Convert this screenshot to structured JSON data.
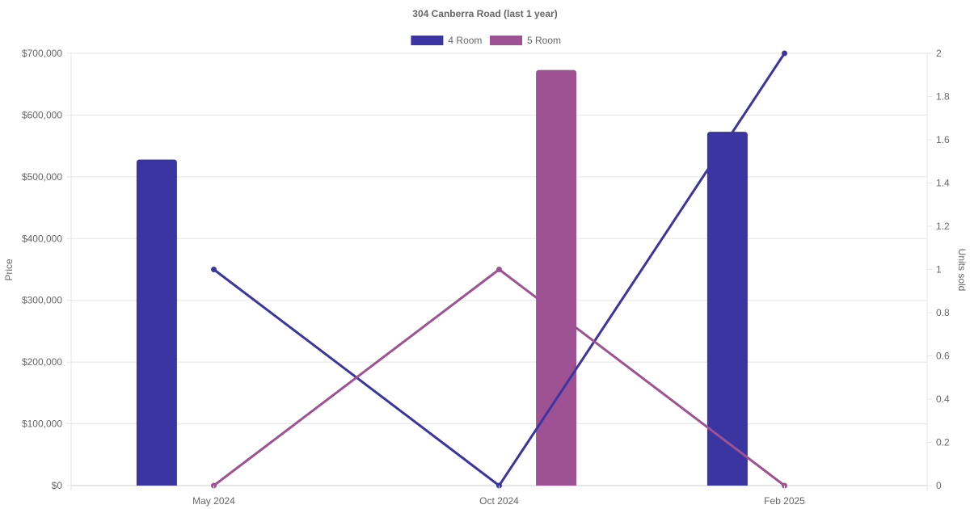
{
  "chart_data": {
    "type": "bar",
    "title": "304 Canberra Road (last 1 year)",
    "categories": [
      "May 2024",
      "Oct 2024",
      "Feb 2025"
    ],
    "y_left": {
      "label": "Price",
      "range": [
        0,
        700000
      ],
      "ticks": [
        0,
        100000,
        200000,
        300000,
        400000,
        500000,
        600000,
        700000
      ],
      "tick_labels": [
        "$0",
        "$100,000",
        "$200,000",
        "$300,000",
        "$400,000",
        "$500,000",
        "$600,000",
        "$700,000"
      ]
    },
    "y_right": {
      "label": "Units sold",
      "range": [
        0,
        2
      ],
      "ticks": [
        0,
        0.2,
        0.4,
        0.6,
        0.8,
        1,
        1.2,
        1.4,
        1.6,
        1.8,
        2
      ],
      "tick_labels": [
        "0",
        "0.2",
        "0.4",
        "0.6",
        "0.8",
        "1",
        "1.2",
        "1.4",
        "1.6",
        "1.8",
        "2"
      ]
    },
    "legend": {
      "placement": "top-center"
    },
    "grid": true,
    "series": [
      {
        "name": "4 Room",
        "color": "#3a35a0",
        "price": [
          528000,
          null,
          573000
        ],
        "units": [
          1,
          0,
          2
        ]
      },
      {
        "name": "5 Room",
        "color": "#9e5193",
        "price": [
          null,
          673000,
          null
        ],
        "units": [
          0,
          1,
          0
        ]
      }
    ]
  }
}
